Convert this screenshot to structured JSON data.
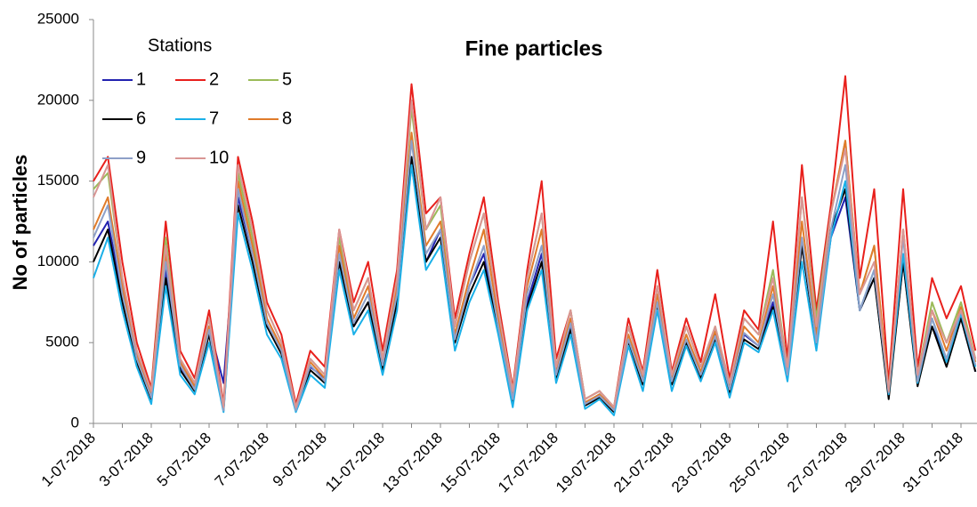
{
  "chart_data": {
    "type": "line",
    "title": "Fine particles",
    "y_label": "No of particles",
    "legend_title": "Stations",
    "x": [
      "1-07-2018",
      null,
      null,
      null,
      "3-07-2018",
      null,
      null,
      null,
      "5-07-2018",
      null,
      null,
      null,
      "7-07-2018",
      null,
      null,
      null,
      "9-07-2018",
      null,
      null,
      null,
      "11-07-2018",
      null,
      null,
      null,
      "13-07-2018",
      null,
      null,
      null,
      "15-07-2018",
      null,
      null,
      null,
      "17-07-2018",
      null,
      null,
      null,
      "19-07-2018",
      null,
      null,
      null,
      "21-07-2018",
      null,
      null,
      null,
      "23-07-2018",
      null,
      null,
      null,
      "25-07-2018",
      null,
      null,
      null,
      "27-07-2018",
      null,
      null,
      null,
      "29-07-2018",
      null,
      null,
      null,
      "31-07-2018",
      null
    ],
    "ylim": [
      0,
      25000
    ],
    "yticks": [
      0,
      5000,
      10000,
      15000,
      20000,
      25000
    ],
    "series": [
      {
        "name": "1",
        "color": "#2222b0",
        "values": [
          11000,
          12500,
          8000,
          4000,
          1800,
          9500,
          3500,
          2200,
          6000,
          2500,
          14000,
          10500,
          6000,
          4500,
          900,
          3500,
          2800,
          10000,
          6000,
          7500,
          3500,
          8000,
          16000,
          10000,
          12000,
          5000,
          8500,
          10500,
          6000,
          1500,
          7500,
          10500,
          3000,
          6000,
          1200,
          1800,
          800,
          5000,
          2500,
          7500,
          2500,
          5000,
          3000,
          5500,
          2000,
          5500,
          4800,
          7500,
          3000,
          11000,
          5000,
          11500,
          14000,
          7000,
          9000,
          1800,
          10000,
          2500,
          6000,
          4000,
          6500,
          3200
        ]
      },
      {
        "name": "2",
        "color": "#e8201c",
        "values": [
          15000,
          16500,
          10000,
          5000,
          2200,
          12500,
          4500,
          2800,
          7000,
          1200,
          16500,
          12500,
          7500,
          5500,
          1200,
          4500,
          3500,
          12000,
          7500,
          10000,
          4500,
          9500,
          21000,
          13000,
          14000,
          6500,
          10500,
          14000,
          7500,
          2200,
          9500,
          15000,
          4000,
          7000,
          1500,
          2000,
          1000,
          6500,
          3200,
          9500,
          3200,
          6500,
          3800,
          8000,
          2800,
          7000,
          5800,
          12500,
          4000,
          16000,
          7000,
          13500,
          21500,
          9000,
          14500,
          2500,
          14500,
          3500,
          9000,
          6500,
          8500,
          4500
        ]
      },
      {
        "name": "5",
        "color": "#9bbb59",
        "values": [
          14500,
          15500,
          9000,
          4500,
          2000,
          11500,
          4000,
          2500,
          6500,
          1000,
          15500,
          11500,
          7000,
          5000,
          1000,
          4000,
          3000,
          11500,
          7000,
          9000,
          4000,
          9000,
          19500,
          12000,
          13500,
          6000,
          10000,
          13000,
          7000,
          2000,
          9000,
          13000,
          3500,
          7000,
          1500,
          2000,
          1000,
          6000,
          3000,
          8500,
          3000,
          6000,
          3500,
          6000,
          2500,
          6500,
          5500,
          9500,
          3500,
          14000,
          6500,
          13000,
          17500,
          8000,
          11000,
          2000,
          12000,
          3000,
          7500,
          5000,
          7500,
          4000
        ]
      },
      {
        "name": "6",
        "color": "#000000",
        "values": [
          10000,
          12000,
          7500,
          3800,
          1500,
          9000,
          3300,
          2000,
          5500,
          800,
          13500,
          10000,
          6000,
          4300,
          800,
          3300,
          2500,
          10000,
          6000,
          7500,
          3300,
          7500,
          16500,
          10000,
          11500,
          5000,
          8000,
          10000,
          5800,
          1400,
          7200,
          10000,
          2800,
          5800,
          1100,
          1600,
          700,
          5000,
          2400,
          7200,
          2400,
          5000,
          2800,
          5200,
          1900,
          5200,
          4600,
          7200,
          2900,
          11000,
          4900,
          12000,
          14500,
          7000,
          9000,
          1500,
          10000,
          2300,
          6000,
          3500,
          6500,
          3200
        ]
      },
      {
        "name": "7",
        "color": "#1ab0e8",
        "values": [
          9000,
          11500,
          7000,
          3500,
          1200,
          8500,
          3000,
          1800,
          5000,
          700,
          13000,
          9500,
          5500,
          4000,
          700,
          3000,
          2200,
          9500,
          5500,
          7000,
          3000,
          7000,
          16000,
          9500,
          11000,
          4500,
          7500,
          9500,
          5500,
          1000,
          7000,
          9500,
          2500,
          5500,
          900,
          1500,
          500,
          4800,
          2000,
          7000,
          2000,
          4800,
          2600,
          5000,
          1600,
          5000,
          4400,
          7000,
          2600,
          10000,
          4500,
          11500,
          15000,
          7000,
          9500,
          1800,
          10500,
          2500,
          6500,
          3800,
          6800,
          3500
        ]
      },
      {
        "name": "8",
        "color": "#e07b2a",
        "values": [
          12000,
          14000,
          8500,
          4200,
          1800,
          10500,
          3800,
          2300,
          6000,
          900,
          15000,
          11000,
          6500,
          4700,
          900,
          3800,
          2800,
          11000,
          6500,
          8500,
          3800,
          8500,
          18000,
          11000,
          12500,
          5500,
          9000,
          12000,
          6500,
          1800,
          8500,
          12000,
          3200,
          6500,
          1300,
          1800,
          900,
          5500,
          2800,
          8000,
          2800,
          5500,
          3200,
          5700,
          2300,
          6000,
          5000,
          8500,
          3200,
          12500,
          5500,
          13000,
          17500,
          8000,
          11000,
          2000,
          12000,
          2800,
          7000,
          4500,
          7200,
          3800
        ]
      },
      {
        "name": "9",
        "color": "#8ea0c8",
        "values": [
          11500,
          13500,
          8000,
          4000,
          1600,
          10000,
          3600,
          2100,
          5800,
          800,
          14500,
          10500,
          6200,
          4500,
          800,
          3600,
          2600,
          10500,
          6200,
          8000,
          3600,
          8000,
          17500,
          10500,
          12000,
          5200,
          8500,
          11000,
          6000,
          1500,
          8000,
          11000,
          3000,
          6200,
          1200,
          1700,
          800,
          5200,
          2600,
          7500,
          2600,
          5200,
          3000,
          5400,
          2100,
          5600,
          4800,
          8000,
          3000,
          11500,
          5000,
          12000,
          16000,
          7000,
          9500,
          1900,
          11500,
          2600,
          6500,
          4000,
          7000,
          3600
        ]
      },
      {
        "name": "10",
        "color": "#d99694",
        "values": [
          14000,
          16000,
          9000,
          4500,
          2000,
          11000,
          4000,
          2500,
          6500,
          1000,
          16000,
          12000,
          7000,
          5000,
          1000,
          4000,
          3000,
          12000,
          7000,
          9000,
          4000,
          9000,
          20000,
          12000,
          14000,
          6000,
          10000,
          13000,
          7000,
          2000,
          9000,
          13000,
          3500,
          7000,
          1500,
          2000,
          1000,
          6000,
          3000,
          8500,
          3000,
          6000,
          3500,
          6000,
          2500,
          6500,
          5500,
          9000,
          3500,
          14000,
          6000,
          13000,
          17000,
          8000,
          10000,
          2000,
          12000,
          3000,
          7000,
          5000,
          7000,
          4000
        ]
      }
    ]
  }
}
